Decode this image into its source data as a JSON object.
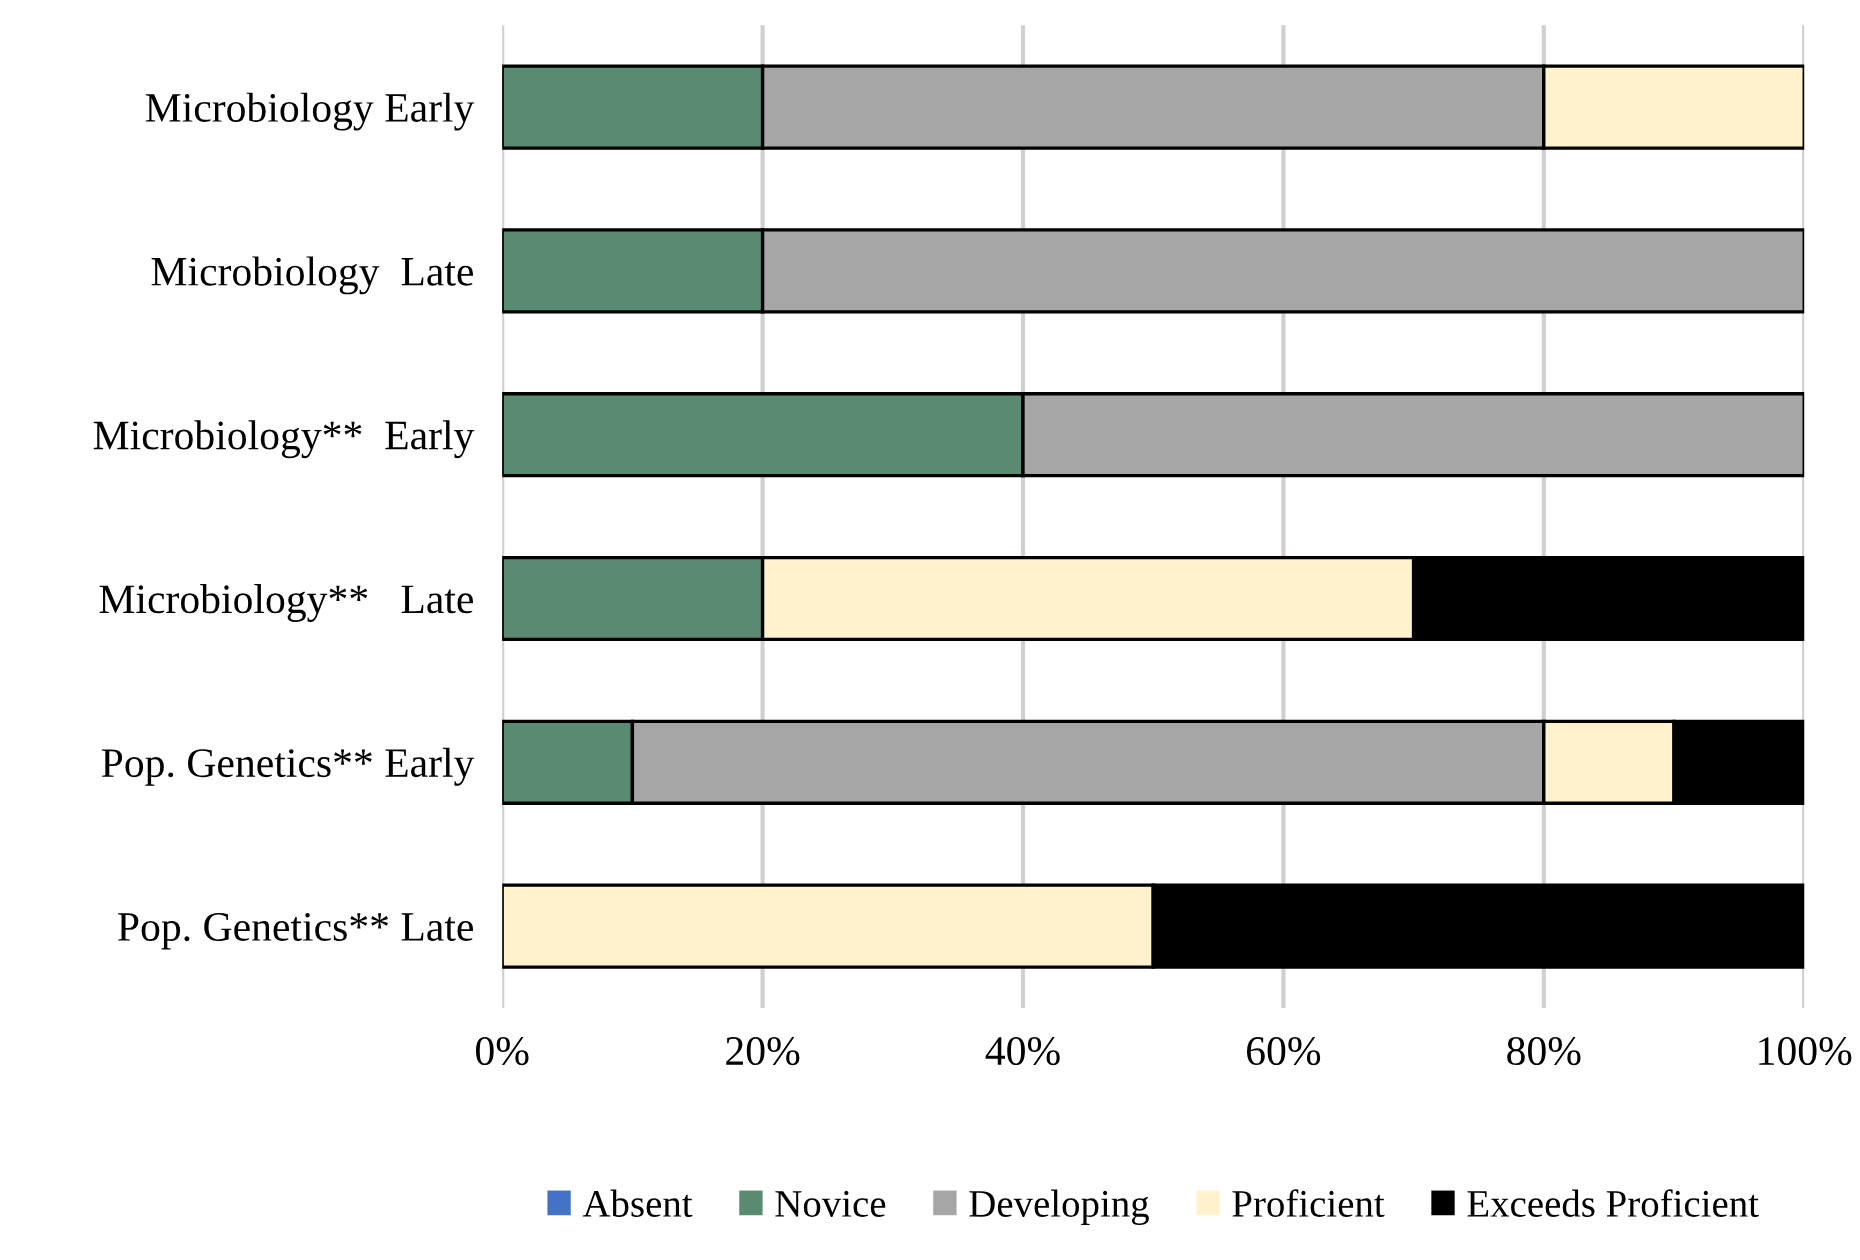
{
  "chart_data": {
    "type": "bar",
    "orientation": "horizontal",
    "stacked": true,
    "categories": [
      "Microbiology Early",
      "Microbiology  Late",
      "Microbiology**  Early",
      "Microbiology**   Late",
      "Pop. Genetics** Early",
      "Pop. Genetics** Late"
    ],
    "series": [
      {
        "name": "Absent",
        "color": "#4472c4",
        "values": [
          0,
          0,
          0,
          0,
          0,
          0
        ]
      },
      {
        "name": "Novice",
        "color": "#5b8a72",
        "values": [
          20,
          20,
          40,
          20,
          10,
          0
        ]
      },
      {
        "name": "Developing",
        "color": "#a6a6a6",
        "values": [
          60,
          80,
          60,
          0,
          70,
          0
        ]
      },
      {
        "name": "Proficient",
        "color": "#fff2cc",
        "values": [
          20,
          0,
          0,
          50,
          10,
          50
        ]
      },
      {
        "name": "Exceeds Proficient",
        "color": "#000000",
        "values": [
          0,
          0,
          0,
          30,
          10,
          50
        ]
      }
    ],
    "xlim": [
      0,
      100
    ],
    "xticks": [
      {
        "value": 0,
        "label": "0%"
      },
      {
        "value": 20,
        "label": "20%"
      },
      {
        "value": 40,
        "label": "40%"
      },
      {
        "value": 60,
        "label": "60%"
      },
      {
        "value": 80,
        "label": "80%"
      },
      {
        "value": 100,
        "label": "100%"
      }
    ],
    "grid": "x",
    "legend": "bottom"
  }
}
